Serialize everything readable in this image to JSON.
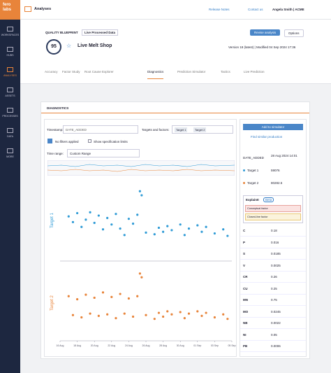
{
  "logo": "fero labs",
  "nav": {
    "app": "Analyses",
    "release": "Release Notes",
    "contact": "Contact us",
    "user": "Angela Smith | ACME"
  },
  "sidebar": [
    "WORKSPACES",
    "HUBS",
    "ANALYSES",
    "ASSETS",
    "PROCESSES",
    "DATA",
    "MORE"
  ],
  "header": {
    "kicker": "QUALITY BLUEPRINT",
    "badge": "Live Processed Data",
    "score": 95,
    "title": "Live Melt Shop",
    "version": "Version 18 (latest) | Modified 04 Sep 2024 17:36",
    "revise": "Revise analysis",
    "options": "Options"
  },
  "tabs": [
    "Accuracy",
    "Factor Study",
    "Root Cause Explorer",
    "Diagnostics",
    "Prediction Simulator",
    "Tactics",
    "Live Prediction"
  ],
  "panel": {
    "title": "DIAGNOSTICS",
    "timestamp_label": "Timestamp:",
    "timestamp": "DATE_ADDED",
    "targets_label": "Targets and factors:",
    "chips": [
      "Target 1",
      "Target 2"
    ],
    "filters": "No filters applied",
    "spec": "Show specification limits",
    "range_label": "Time range:",
    "range": "Custom Range"
  },
  "side": {
    "add": "Add to simulator",
    "similar": "Find similar production",
    "date_key": "DATE_ADDED",
    "date_value": "28 Aug 2024 14:01",
    "targets": [
      {
        "name": "Target 1",
        "value": 59076,
        "color": "#2f9bd6"
      },
      {
        "name": "Target 2",
        "value": 80282.5,
        "color": "#e8843a"
      }
    ],
    "explain": "ExplainIt",
    "beta": "Beta",
    "factors": [
      "Conceptual factor",
      "Closed-line factor"
    ],
    "rows": [
      [
        "C",
        0.18
      ],
      [
        "P",
        0.016
      ],
      [
        "S",
        0.0185
      ],
      [
        "V",
        0.0025
      ],
      [
        "CR",
        0.26
      ],
      [
        "CU",
        0.25
      ],
      [
        "MN",
        0.75
      ],
      [
        "MO",
        0.0245
      ],
      [
        "NB",
        0.0022
      ],
      [
        "NI",
        0.05
      ],
      [
        "PB",
        0.0006
      ]
    ]
  },
  "chart_data": [
    {
      "type": "scatter",
      "ylabel": "Target 1",
      "color": "#2f9bd6",
      "xlim": [
        0,
        20
      ],
      "ylim": [
        0,
        10
      ],
      "x": [
        1,
        1.5,
        2,
        2.5,
        3,
        3.5,
        4,
        4.5,
        5,
        5.5,
        6,
        6.5,
        7,
        7.5,
        8,
        8.5,
        9,
        9.3,
        9.5,
        10,
        11,
        11.5,
        12,
        12.5,
        13,
        14,
        14.5,
        15,
        16,
        16.5,
        17,
        18,
        19,
        19.5
      ],
      "values": [
        5.5,
        4.8,
        5.9,
        4.2,
        5.1,
        6,
        4.7,
        5.6,
        3.9,
        5.3,
        4.5,
        5.8,
        4,
        3.2,
        5.2,
        4.6,
        5.7,
        8.6,
        8.1,
        3.5,
        3.3,
        4.1,
        3.6,
        4.3,
        3.8,
        4.5,
        3.2,
        4,
        4.4,
        3.6,
        4.2,
        3.4,
        3.9,
        3.1
      ]
    },
    {
      "type": "scatter",
      "ylabel": "Target 2",
      "color": "#e8843a",
      "xlim": [
        0,
        20
      ],
      "ylim": [
        0,
        10
      ],
      "x": [
        1,
        1.5,
        2,
        2.5,
        3,
        3.5,
        4,
        4.5,
        5,
        5.5,
        6,
        6.5,
        7,
        7.5,
        8,
        8.5,
        9,
        9.3,
        9.5,
        10,
        11,
        11.5,
        12,
        12.5,
        13,
        14,
        14.5,
        15,
        16,
        16.5,
        17,
        18,
        19,
        19.5
      ],
      "values": [
        5.9,
        3.4,
        5.5,
        3.1,
        6.1,
        3.6,
        5.7,
        3.3,
        6.4,
        3.5,
        5.8,
        3,
        6.2,
        3.6,
        5.6,
        3.2,
        5.9,
        8.9,
        8.4,
        3.4,
        2.9,
        3.7,
        3.2,
        3.9,
        3.5,
        3.8,
        3,
        3.6,
        3.9,
        3.3,
        3.7,
        3.1,
        3.5,
        2.9
      ],
      "xticks": [
        {
          "value": 0,
          "label": "16 Aug"
        },
        {
          "value": 2,
          "label": "18 Aug"
        },
        {
          "value": 4,
          "label": "20 Aug"
        },
        {
          "value": 6,
          "label": "22 Aug"
        },
        {
          "value": 8,
          "label": "24 Aug"
        },
        {
          "value": 10,
          "label": "26 Aug"
        },
        {
          "value": 12,
          "label": "28 Aug"
        },
        {
          "value": 14,
          "label": "30 Aug"
        },
        {
          "value": 16,
          "label": "01 Sep"
        },
        {
          "value": 18,
          "label": "03 Sep"
        },
        {
          "value": 20,
          "label": "05 Sep"
        }
      ]
    }
  ]
}
